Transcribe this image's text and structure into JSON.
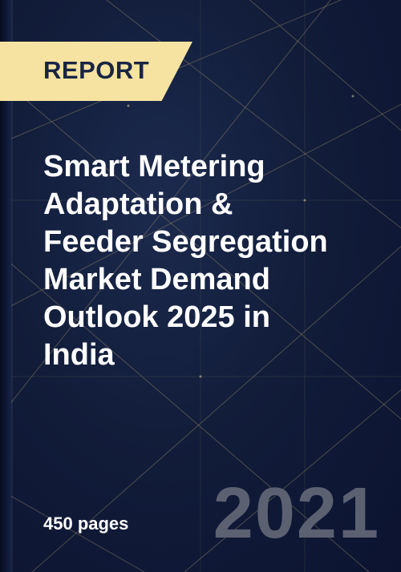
{
  "badge": {
    "label": "REPORT"
  },
  "title": "Smart Metering\nAdaptation &\nFeeder Segregation\nMarket Demand\nOutlook 2025 in\nIndia",
  "pages": "450 pages",
  "year": "2021",
  "colors": {
    "background": "#121d3a",
    "badge": "#f6e3a1",
    "badge_text": "#1a2544",
    "title": "#ffffff",
    "year": "#5c6172",
    "lines": "#c9b47a"
  }
}
